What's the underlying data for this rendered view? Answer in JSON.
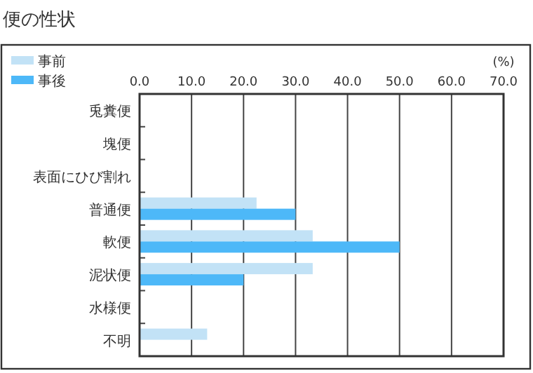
{
  "chart_data": {
    "type": "bar",
    "orientation": "horizontal",
    "title": "便の性状",
    "xlabel": "(%)",
    "categories": [
      "兎糞便",
      "塊便",
      "表面にひび割れ",
      "普通便",
      "軟便",
      "泥状便",
      "水様便",
      "不明"
    ],
    "series": [
      {
        "name": "事前",
        "color": "#c2e2f6",
        "values": [
          0,
          0,
          0,
          22.5,
          33.3,
          33.3,
          0,
          13.0
        ]
      },
      {
        "name": "事後",
        "color": "#4db8f8",
        "values": [
          0,
          0,
          0,
          30.0,
          50.0,
          20.0,
          0,
          0
        ]
      }
    ],
    "xlim": [
      0,
      70
    ],
    "xticks": [
      {
        "value": 0,
        "label": "0.0"
      },
      {
        "value": 10,
        "label": "10.0"
      },
      {
        "value": 20,
        "label": "20.0"
      },
      {
        "value": 30,
        "label": "30.0"
      },
      {
        "value": 40,
        "label": "40.0"
      },
      {
        "value": 50,
        "label": "50.0"
      },
      {
        "value": 60,
        "label": "60.0"
      },
      {
        "value": 70,
        "label": "70.0"
      }
    ],
    "grid": "x",
    "legend": "top left"
  }
}
